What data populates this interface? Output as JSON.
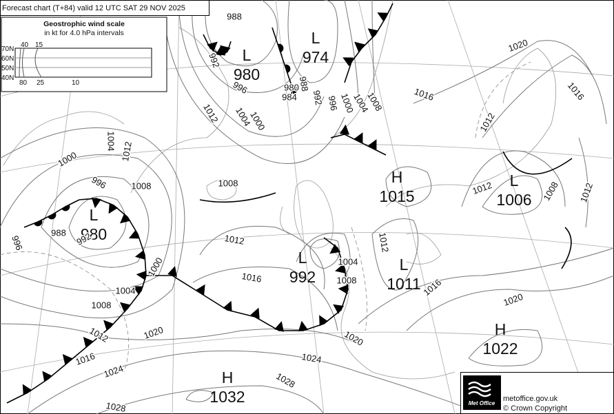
{
  "header": {
    "title": "Forecast chart (T+84) valid 12 UTC SAT 29  NOV 2025"
  },
  "wind_scale": {
    "title": "Geostrophic wind scale",
    "subtitle": "in kt for 4.0 hPa intervals",
    "latitudes": [
      "70N",
      "60N",
      "50N",
      "40N"
    ],
    "top_speeds": [
      "40",
      "15"
    ],
    "bottom_speeds": [
      "80",
      "25",
      "10"
    ]
  },
  "pressure_centres": [
    {
      "type": "L",
      "value": "980"
    },
    {
      "type": "L",
      "value": "974"
    },
    {
      "type": "H",
      "value": "1015"
    },
    {
      "type": "L",
      "value": "1006"
    },
    {
      "type": "L",
      "value": "980"
    },
    {
      "type": "L",
      "value": "992"
    },
    {
      "type": "L",
      "value": "1011"
    },
    {
      "type": "H",
      "value": "1022"
    },
    {
      "type": "H",
      "value": "1032"
    }
  ],
  "isobar_labels": [
    "988",
    "992",
    "996",
    "1004",
    "1000",
    "1012",
    "984",
    "980",
    "988",
    "992",
    "996",
    "1000",
    "1004",
    "1008",
    "1016",
    "1020",
    "1016",
    "1012",
    "1008",
    "1012",
    "1012",
    "1004",
    "1012",
    "1000",
    "996",
    "1008",
    "1008",
    "988",
    "992",
    "996",
    "1000",
    "1004",
    "1008",
    "1012",
    "1016",
    "1020",
    "1024",
    "1028",
    "1012",
    "1016",
    "1004",
    "1008",
    "1012",
    "1016",
    "1020",
    "1020",
    "1024",
    "1028"
  ],
  "footer": {
    "logo": "Met Office",
    "site": "metoffice.gov.uk",
    "copyright": "© Crown Copyright"
  }
}
